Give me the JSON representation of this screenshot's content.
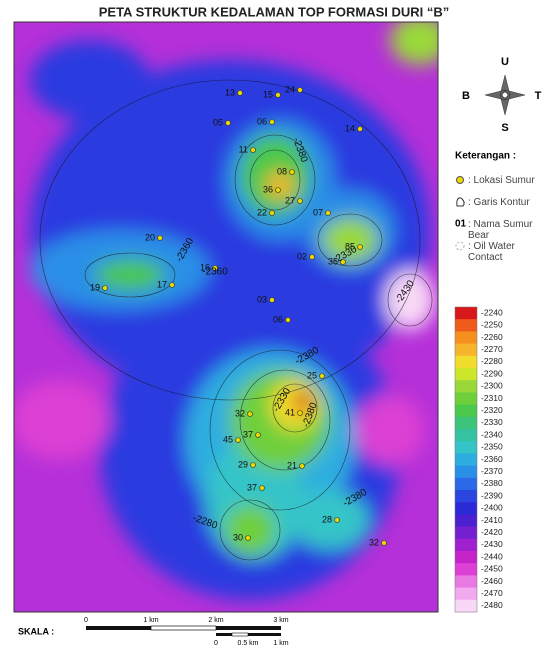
{
  "title": "PETA STRUKTUR KEDALAMAN TOP FORMASI DURI “B”",
  "compass": {
    "north": "U",
    "south": "S",
    "west": "B",
    "east": "T"
  },
  "legend": {
    "heading": "Keterangan :",
    "items": [
      {
        "symbol": "",
        "text": ": Lokasi Sumur"
      },
      {
        "symbol": "",
        "text": ": Garis Kontur"
      },
      {
        "symbol": "01",
        "text": ": Nama Sumur Bear"
      },
      {
        "symbol": "",
        "text": ": Oil Water Contact"
      }
    ]
  },
  "colorbar": {
    "ticks": [
      -2240,
      -2250,
      -2260,
      -2270,
      -2280,
      -2290,
      -2300,
      -2310,
      -2320,
      -2330,
      -2340,
      -2350,
      -2360,
      -2370,
      -2380,
      -2390,
      -2400,
      -2410,
      -2420,
      -2430,
      -2440,
      -2450,
      -2460,
      -2470,
      -2480
    ],
    "colors": [
      "#d7191c",
      "#f05a1a",
      "#f5901e",
      "#f7b52c",
      "#f2dc2c",
      "#cce62a",
      "#9ad83a",
      "#6fcf3a",
      "#4cc84a",
      "#3cc47a",
      "#35c2a2",
      "#34c4c8",
      "#2eaee0",
      "#2a8fe6",
      "#2a6ae8",
      "#2a45e0",
      "#2a2ad6",
      "#4a20d0",
      "#7420d0",
      "#a020d0",
      "#c424c8",
      "#dc40d4",
      "#ea78e2",
      "#f2aaee",
      "#f8d8f6"
    ]
  },
  "wells": [
    "13",
    "15",
    "24",
    "05",
    "06",
    "14",
    "11",
    "08",
    "36",
    "27",
    "22",
    "07",
    "02",
    "35",
    "85",
    "20",
    "19",
    "17",
    "16",
    "03",
    "06",
    "25",
    "32",
    "37",
    "41",
    "45",
    "29",
    "21",
    "37",
    "30",
    "28",
    "32"
  ],
  "contour_labels": [
    "-2380",
    "-2360",
    "-2360",
    "-2330",
    "-2430",
    "-2380",
    "-2330",
    "-2380",
    "-2380",
    "-2280"
  ],
  "scale": {
    "label": "SKALA :",
    "km_labels": [
      "0",
      "1 km",
      "2 km",
      "3 km"
    ],
    "small_labels": [
      "0",
      "0.5 km",
      "1 km"
    ]
  }
}
